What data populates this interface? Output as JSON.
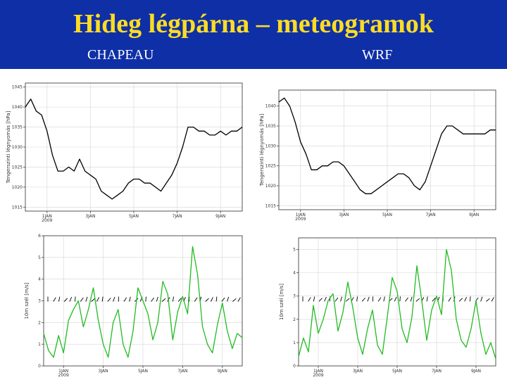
{
  "header": {
    "title": "Hideg légpárna – meteogramok",
    "left_model": "CHAPEAU",
    "right_model": "WRF"
  },
  "colors": {
    "header_bg": "#0f2fa6",
    "title": "#ffdd22",
    "pressure_line": "#000000",
    "wind_line": "#22bb22",
    "barb": "#000000"
  },
  "chart_data": [
    {
      "id": "chapeau-pressure",
      "type": "line",
      "model": "CHAPEAU",
      "ylabel": "Tengerszinti légnyomás [hPa]",
      "ylim": [
        1014,
        1046
      ],
      "yticks": [
        "1015",
        "1020",
        "1025",
        "1030",
        "1035",
        "1040",
        "1045"
      ],
      "xlim": [
        0,
        10
      ],
      "xticks": [
        {
          "x": 1,
          "label": "1JAN",
          "sub": "2009"
        },
        {
          "x": 3,
          "label": "3JAN"
        },
        {
          "x": 5,
          "label": "5JAN"
        },
        {
          "x": 7,
          "label": "7JAN"
        },
        {
          "x": 9,
          "label": "9JAN"
        }
      ],
      "series": [
        {
          "name": "pressure",
          "x": [
            0,
            0.25,
            0.5,
            0.75,
            1,
            1.25,
            1.5,
            1.75,
            2,
            2.25,
            2.5,
            2.75,
            3,
            3.25,
            3.5,
            3.75,
            4,
            4.25,
            4.5,
            4.75,
            5,
            5.25,
            5.5,
            5.75,
            6,
            6.25,
            6.5,
            6.75,
            7,
            7.25,
            7.5,
            7.75,
            8,
            8.25,
            8.5,
            8.75,
            9,
            9.25,
            9.5,
            9.75,
            10
          ],
          "values": [
            1040,
            1042,
            1039,
            1038,
            1034,
            1028,
            1024,
            1024,
            1025,
            1024,
            1027,
            1024,
            1023,
            1022,
            1019,
            1018,
            1017,
            1018,
            1019,
            1021,
            1022,
            1022,
            1021,
            1021,
            1020,
            1019,
            1021,
            1023,
            1026,
            1030,
            1035,
            1035,
            1034,
            1034,
            1033,
            1033,
            1034,
            1033,
            1034,
            1034,
            1035
          ]
        }
      ]
    },
    {
      "id": "wrf-pressure",
      "type": "line",
      "model": "WRF",
      "ylabel": "Tengerszinti légnyomás [hPa]",
      "ylim": [
        1014,
        1044
      ],
      "yticks": [
        "1015",
        "1020",
        "1025",
        "1030",
        "1035",
        "1040"
      ],
      "xlim": [
        0,
        10
      ],
      "xticks": [
        {
          "x": 1,
          "label": "1JAN",
          "sub": "2009"
        },
        {
          "x": 3,
          "label": "3JAN"
        },
        {
          "x": 5,
          "label": "5JAN"
        },
        {
          "x": 7,
          "label": "7JAN"
        },
        {
          "x": 9,
          "label": "9JAN"
        }
      ],
      "series": [
        {
          "name": "pressure",
          "x": [
            0,
            0.25,
            0.5,
            0.75,
            1,
            1.25,
            1.5,
            1.75,
            2,
            2.25,
            2.5,
            2.75,
            3,
            3.25,
            3.5,
            3.75,
            4,
            4.25,
            4.5,
            4.75,
            5,
            5.25,
            5.5,
            5.75,
            6,
            6.25,
            6.5,
            6.75,
            7,
            7.25,
            7.5,
            7.75,
            8,
            8.25,
            8.5,
            8.75,
            9,
            9.25,
            9.5,
            9.75,
            10
          ],
          "values": [
            1041,
            1042,
            1040,
            1036,
            1031,
            1028,
            1024,
            1024,
            1025,
            1025,
            1026,
            1026,
            1025,
            1023,
            1021,
            1019,
            1018,
            1018,
            1019,
            1020,
            1021,
            1022,
            1023,
            1023,
            1022,
            1020,
            1019,
            1021,
            1025,
            1029,
            1033,
            1035,
            1035,
            1034,
            1033,
            1033,
            1033,
            1033,
            1033,
            1034,
            1034
          ]
        }
      ]
    },
    {
      "id": "chapeau-wind",
      "type": "line",
      "model": "CHAPEAU",
      "ylabel": "10m szél [m/s]",
      "ylim": [
        0,
        6
      ],
      "yticks": [
        "0",
        "1",
        "2",
        "3",
        "4",
        "5",
        "6"
      ],
      "xlim": [
        0,
        10
      ],
      "xticks": [
        {
          "x": 1,
          "label": "1JAN",
          "sub": "2009"
        },
        {
          "x": 3,
          "label": "3JAN"
        },
        {
          "x": 5,
          "label": "5JAN"
        },
        {
          "x": 7,
          "label": "7JAN"
        },
        {
          "x": 9,
          "label": "9JAN"
        }
      ],
      "barb_level": 3,
      "series": [
        {
          "name": "wind speed",
          "x": [
            0,
            0.25,
            0.5,
            0.75,
            1,
            1.25,
            1.5,
            1.75,
            2,
            2.25,
            2.5,
            2.75,
            3,
            3.25,
            3.5,
            3.75,
            4,
            4.25,
            4.5,
            4.75,
            5,
            5.25,
            5.5,
            5.75,
            6,
            6.25,
            6.5,
            6.75,
            7,
            7.25,
            7.5,
            7.75,
            8,
            8.25,
            8.5,
            8.75,
            9,
            9.25,
            9.5,
            9.75,
            10
          ],
          "values": [
            1.5,
            0.7,
            0.4,
            1.4,
            0.6,
            2.1,
            2.6,
            3.0,
            1.8,
            2.6,
            3.6,
            2.1,
            1.0,
            0.4,
            2.0,
            2.6,
            1.0,
            0.4,
            1.6,
            3.6,
            3.0,
            2.4,
            1.2,
            2.0,
            3.9,
            3.3,
            1.2,
            2.5,
            3.2,
            2.4,
            5.5,
            4.2,
            1.8,
            1.0,
            0.6,
            1.9,
            2.9,
            1.6,
            0.8,
            1.5,
            1.3
          ]
        }
      ]
    },
    {
      "id": "wrf-wind",
      "type": "line",
      "model": "WRF",
      "ylabel": "10m szél [m/s]",
      "ylim": [
        0,
        5.5
      ],
      "yticks": [
        "0",
        "1",
        "2",
        "3",
        "4",
        "5"
      ],
      "xlim": [
        0,
        10
      ],
      "xticks": [
        {
          "x": 1,
          "label": "1JAN",
          "sub": "2009"
        },
        {
          "x": 3,
          "label": "3JAN"
        },
        {
          "x": 5,
          "label": "5JAN"
        },
        {
          "x": 7,
          "label": "7JAN"
        },
        {
          "x": 9,
          "label": "9JAN"
        }
      ],
      "barb_level": 2.8,
      "series": [
        {
          "name": "wind speed",
          "x": [
            0,
            0.25,
            0.5,
            0.75,
            1,
            1.25,
            1.5,
            1.75,
            2,
            2.25,
            2.5,
            2.75,
            3,
            3.25,
            3.5,
            3.75,
            4,
            4.25,
            4.5,
            4.75,
            5,
            5.25,
            5.5,
            5.75,
            6,
            6.25,
            6.5,
            6.75,
            7,
            7.25,
            7.5,
            7.75,
            8,
            8.25,
            8.5,
            8.75,
            9,
            9.25,
            9.5,
            9.75,
            10
          ],
          "values": [
            0.4,
            1.2,
            0.6,
            2.6,
            1.4,
            2.0,
            2.8,
            3.1,
            1.5,
            2.3,
            3.6,
            2.5,
            1.2,
            0.5,
            1.6,
            2.4,
            0.9,
            0.5,
            2.1,
            3.8,
            3.2,
            1.6,
            1.0,
            2.1,
            4.3,
            2.8,
            1.1,
            2.4,
            3.0,
            2.2,
            5.0,
            4.1,
            2.0,
            1.1,
            0.8,
            1.6,
            2.8,
            1.4,
            0.5,
            1.0,
            0.3
          ]
        }
      ]
    }
  ]
}
